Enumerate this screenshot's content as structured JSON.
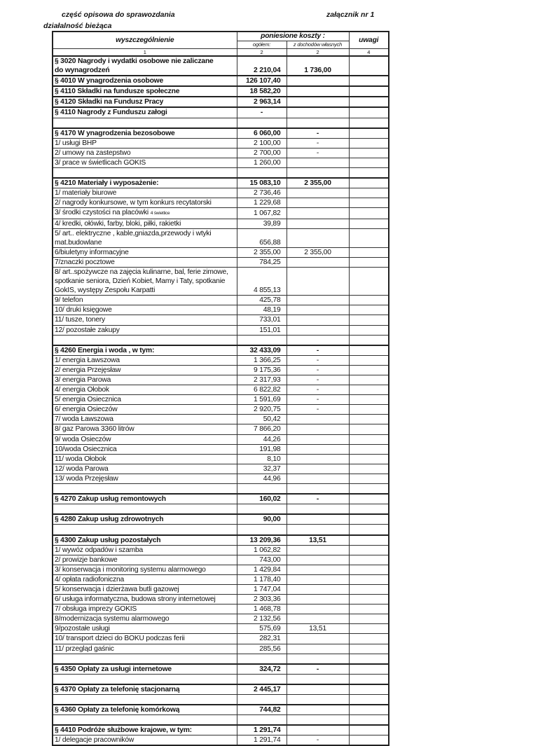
{
  "header": {
    "left_title": "część opisowa do sprawozdania",
    "right_title": "załącznik nr 1",
    "subtitle": "działalność bieżąca"
  },
  "table_head": {
    "col1": "wyszczególnienie",
    "group": "poniesione koszty :",
    "col2": "ogółem:",
    "col3": "z dochodów własnych",
    "col4": "uwagi",
    "num1": "1",
    "num2": "2",
    "num3": "2",
    "num4": "4"
  },
  "rows": [
    {
      "label": "§ 3020 Nagrody i wydatki osobowe nie zaliczane\ndo wynagrodzeń",
      "total": "2 210,04",
      "own": "1 736,00",
      "bold": true
    },
    {
      "label": "§ 4010 W ynagrodzenia osobowe",
      "total": "126 107,40",
      "own": "",
      "bold": true
    },
    {
      "label": "§ 4110 Składki na fundusze społeczne",
      "total": "18 582,20",
      "own": "",
      "bold": true
    },
    {
      "label": "§ 4120 Składki na Fundusz Pracy",
      "total": "2 963,14",
      "own": "",
      "bold": true
    },
    {
      "label": "§ 4110 Nagrody z Funduszu załogi",
      "total": "-",
      "own": "",
      "bold": true,
      "center_total": true
    },
    {
      "label": "",
      "total": "",
      "own": ""
    },
    {
      "label": "§ 4170 W ynagrodzenia bezosobowe",
      "total": "6 060,00",
      "own": "-",
      "bold": true
    },
    {
      "label": "1/ usługi BHP",
      "total": "2 100,00",
      "own": "-"
    },
    {
      "label": "2/ umowy na zastepstwo",
      "total": "2 700,00",
      "own": "-"
    },
    {
      "label": "3/ prace w świetlicach GOKIS",
      "total": "1 260,00",
      "own": ""
    },
    {
      "label": "",
      "total": "",
      "own": ""
    },
    {
      "label": "§ 4210 Materiały i wyposażenie:",
      "total": "15 083,10",
      "own": "2 355,00",
      "bold": true
    },
    {
      "label": "1/ materiały biurowe",
      "total": "2 736,46",
      "own": ""
    },
    {
      "label": "2/ nagrody konkursowe, w tym konkurs recytatorski",
      "total": "1 229,68",
      "own": ""
    },
    {
      "label": "3/ środki czystości na placówki",
      "note": "4 świetlice",
      "total": "1 067,82",
      "own": ""
    },
    {
      "label": "4/ kredki, ołówki, farby, bloki, piłki, rakietki",
      "total": "39,89",
      "own": ""
    },
    {
      "label": "5/ art.. elektryczne , kable,gniazda,przewody i wtyki\nmat.budowlane",
      "total": "656,88",
      "own": ""
    },
    {
      "label": "6/biuletyny informacyjne",
      "total": "2 355,00",
      "own": "2 355,00"
    },
    {
      "label": "7/znaczki pocztowe",
      "total": "784,25",
      "own": ""
    },
    {
      "label": "8/ art..spożywcze na zajęcia kulinarne, bal, ferie zimowe,\nspotkanie seniora, Dzień Kobiet, Mamy i Taty, spotkanie\nGokIS, występy Zespołu Karpatti",
      "total": "4 855,13",
      "own": ""
    },
    {
      "label": "9/ telefon",
      "total": "425,78",
      "own": ""
    },
    {
      "label": "10/ druki księgowe",
      "total": "48,19",
      "own": ""
    },
    {
      "label": "11/ tusze, tonery",
      "total": "733,01",
      "own": ""
    },
    {
      "label": "12/ pozostałe zakupy",
      "total": "151,01",
      "own": ""
    },
    {
      "label": "",
      "total": "",
      "own": ""
    },
    {
      "label": "§ 4260 Energia i woda , w tym:",
      "total": "32 433,09",
      "own": "-",
      "bold": true
    },
    {
      "label": "1/ energia Ławszowa",
      "total": "1 366,25",
      "own": "-"
    },
    {
      "label": "2/ energia Przejęsław",
      "total": "9 175,36",
      "own": "-"
    },
    {
      "label": "3/ energia Parowa",
      "total": "2 317,93",
      "own": "-"
    },
    {
      "label": "4/ energia Ołobok",
      "total": "6 822,82",
      "own": "-"
    },
    {
      "label": "5/ energia Osiecznica",
      "total": "1 591,69",
      "own": "-"
    },
    {
      "label": "6/ energia Osieczów",
      "total": "2 920,75",
      "own": "-"
    },
    {
      "label": "7/ woda Ławszowa",
      "total": "50,42",
      "own": ""
    },
    {
      "label": "8/ gaz Parowa 3360 litrów",
      "total": "7 866,20",
      "own": ""
    },
    {
      "label": "9/ woda Osieczów",
      "total": "44,26",
      "own": ""
    },
    {
      "label": "10/woda Osiecznica",
      "total": "191,98",
      "own": ""
    },
    {
      "label": "11/ woda Ołobok",
      "total": "8,10",
      "own": ""
    },
    {
      "label": "12/ woda Parowa",
      "total": "32,37",
      "own": ""
    },
    {
      "label": "13/ woda Przejęsław",
      "total": "44,96",
      "own": ""
    },
    {
      "label": "",
      "total": "",
      "own": ""
    },
    {
      "label": "§ 4270 Zakup usług remontowych",
      "total": "160,02",
      "own": "-",
      "bold": true
    },
    {
      "label": "",
      "total": "",
      "own": ""
    },
    {
      "label": "§ 4280 Zakup usług zdrowotnych",
      "total": "90,00",
      "own": "",
      "bold": true
    },
    {
      "label": "",
      "total": "",
      "own": ""
    },
    {
      "label": "§ 4300 Zakup usług pozostałych",
      "total": "13 209,36",
      "own": "13,51",
      "bold": true
    },
    {
      "label": "1/ wywóz odpadów i szamba",
      "total": "1 062,82",
      "own": ""
    },
    {
      "label": "2/ prowizje bankowe",
      "total": "743,00",
      "own": ""
    },
    {
      "label": "3/ konserwacja i monitoring systemu alarmowego",
      "total": "1 429,84",
      "own": ""
    },
    {
      "label": "4/ opłata radiofoniczna",
      "total": "1 178,40",
      "own": ""
    },
    {
      "label": "5/ konserwacja i dzierżawa butli gazowej",
      "total": "1 747,04",
      "own": ""
    },
    {
      "label": "6/ usługa informatyczna, budowa strony internetowej",
      "total": "2 303,36",
      "own": ""
    },
    {
      "label": "7/ obsługa imprezy GOKIS",
      "total": "1 468,78",
      "own": ""
    },
    {
      "label": "8/modernizacja systemu alarmowego",
      "total": "2 132,56",
      "own": ""
    },
    {
      "label": "9/pozostałe usługi",
      "total": "575,69",
      "own": "13,51"
    },
    {
      "label": "10/ transport dzieci do BOKU podczas ferii",
      "total": "282,31",
      "own": ""
    },
    {
      "label": "11/ przegląd gaśnic",
      "total": "285,56",
      "own": ""
    },
    {
      "label": "",
      "total": "",
      "own": ""
    },
    {
      "label": "§ 4350 Opłaty za usługi internetowe",
      "total": "324,72",
      "own": "-",
      "bold": true
    },
    {
      "label": "",
      "total": "",
      "own": ""
    },
    {
      "label": "§ 4370 Opłaty za telefonię stacjonarną",
      "total": "2 445,17",
      "own": "",
      "bold": true
    },
    {
      "label": "",
      "total": "",
      "own": ""
    },
    {
      "label": "§ 4360 Opłaty za telefonię komórkową",
      "total": "744,82",
      "own": "",
      "bold": true
    },
    {
      "label": "",
      "total": "",
      "own": ""
    },
    {
      "label": "§ 4410 Podróże służbowe krajowe, w tym:",
      "total": "1 291,74",
      "own": "",
      "bold": true
    },
    {
      "label": "1/ delegacje pracowników",
      "total": "1 291,74",
      "own": "-"
    }
  ]
}
